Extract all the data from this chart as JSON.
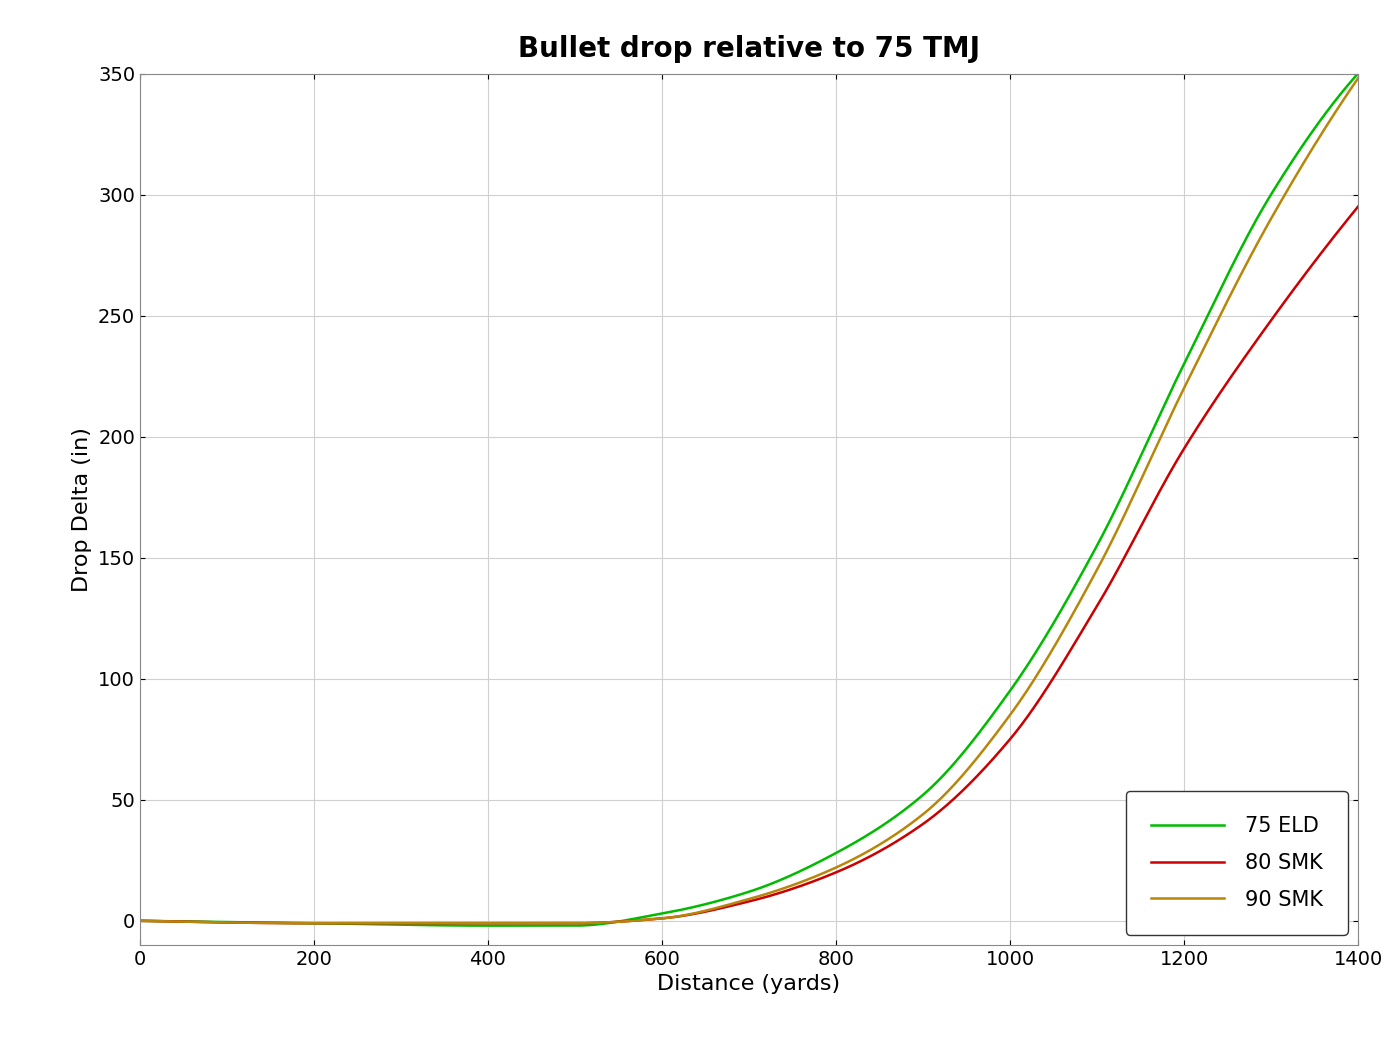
{
  "title": "Bullet drop relative to 75 TMJ",
  "xlabel": "Distance (yards)",
  "ylabel": "Drop Delta (in)",
  "xlim": [
    0,
    1400
  ],
  "ylim": [
    -10,
    350
  ],
  "yticks": [
    0,
    50,
    100,
    150,
    200,
    250,
    300,
    350
  ],
  "xticks": [
    0,
    200,
    400,
    600,
    800,
    1000,
    1200,
    1400
  ],
  "series": [
    {
      "label": "75 ELD",
      "color": "#00BB00"
    },
    {
      "label": "80 SMK",
      "color": "#CC0000"
    },
    {
      "label": "90 SMK",
      "color": "#B8860B"
    }
  ],
  "background_color": "#ffffff",
  "grid_color": "#d0d0d0",
  "title_fontsize": 20,
  "label_fontsize": 16,
  "tick_fontsize": 14,
  "legend_fontsize": 15,
  "line_width": 1.8,
  "eld75_pts_x": [
    0,
    200,
    400,
    500,
    600,
    700,
    800,
    900,
    1000,
    1100,
    1200,
    1300,
    1400
  ],
  "eld75_pts_y": [
    0,
    -1,
    -2,
    -2,
    3,
    12,
    28,
    52,
    95,
    155,
    230,
    300,
    350
  ],
  "smk80_pts_x": [
    0,
    200,
    400,
    500,
    600,
    700,
    800,
    900,
    1000,
    1100,
    1200,
    1300,
    1400
  ],
  "smk80_pts_y": [
    0,
    -1,
    -1,
    -1,
    1,
    8,
    20,
    40,
    75,
    130,
    195,
    248,
    295
  ],
  "smk90_pts_x": [
    0,
    200,
    400,
    500,
    600,
    700,
    800,
    900,
    1000,
    1100,
    1200,
    1300,
    1400
  ],
  "smk90_pts_y": [
    0,
    -1,
    -1,
    -1,
    1,
    9,
    22,
    44,
    85,
    145,
    220,
    290,
    348
  ]
}
